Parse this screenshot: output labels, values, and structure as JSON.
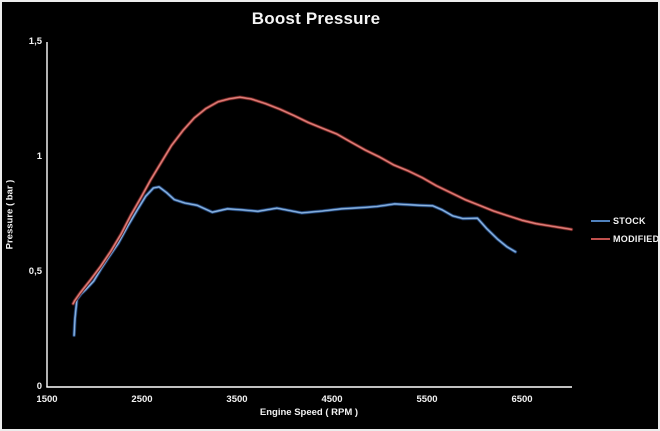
{
  "chart_data": {
    "type": "line",
    "title": "Boost Pressure",
    "xlabel": "Engine Speed ( RPM )",
    "ylabel": "Pressure ( bar )",
    "xlim": [
      1500,
      7026
    ],
    "ylim": [
      0,
      1.5
    ],
    "grid": false,
    "background": "#000000",
    "axis_color": "#ffffff",
    "text_color": "#f2f2f2",
    "legend_position": "right",
    "x_ticks": [
      {
        "value": 1500,
        "label": "1500"
      },
      {
        "value": 2500,
        "label": "2500"
      },
      {
        "value": 3500,
        "label": "3500"
      },
      {
        "value": 4500,
        "label": "4500"
      },
      {
        "value": 5500,
        "label": "5500"
      },
      {
        "value": 6500,
        "label": "6500"
      }
    ],
    "y_ticks": [
      {
        "value": 0,
        "label": "0"
      },
      {
        "value": 0.5,
        "label": "0,5"
      },
      {
        "value": 1,
        "label": "1"
      },
      {
        "value": 1.5,
        "label": "1,5"
      }
    ],
    "series": [
      {
        "name": "STOCK",
        "color": "#4f81bd",
        "halo": "#18325a",
        "core": "#a9c8e8",
        "points": [
          [
            1785,
            0.225
          ],
          [
            1795,
            0.3
          ],
          [
            1815,
            0.38
          ],
          [
            1860,
            0.405
          ],
          [
            1910,
            0.425
          ],
          [
            1990,
            0.46
          ],
          [
            2070,
            0.515
          ],
          [
            2150,
            0.565
          ],
          [
            2250,
            0.625
          ],
          [
            2350,
            0.7
          ],
          [
            2450,
            0.77
          ],
          [
            2540,
            0.83
          ],
          [
            2620,
            0.865
          ],
          [
            2680,
            0.87
          ],
          [
            2760,
            0.845
          ],
          [
            2840,
            0.815
          ],
          [
            2950,
            0.8
          ],
          [
            3080,
            0.79
          ],
          [
            3240,
            0.76
          ],
          [
            3400,
            0.775
          ],
          [
            3560,
            0.77
          ],
          [
            3720,
            0.764
          ],
          [
            3920,
            0.778
          ],
          [
            4180,
            0.757
          ],
          [
            4400,
            0.765
          ],
          [
            4600,
            0.775
          ],
          [
            4820,
            0.78
          ],
          [
            4970,
            0.785
          ],
          [
            5160,
            0.796
          ],
          [
            5420,
            0.79
          ],
          [
            5560,
            0.788
          ],
          [
            5660,
            0.77
          ],
          [
            5770,
            0.744
          ],
          [
            5880,
            0.732
          ],
          [
            6030,
            0.734
          ],
          [
            6130,
            0.688
          ],
          [
            6240,
            0.644
          ],
          [
            6340,
            0.61
          ],
          [
            6430,
            0.588
          ]
        ]
      },
      {
        "name": "MODIFIED",
        "color": "#c0504d",
        "halo": "#531d1b",
        "core": "#e39992",
        "points": [
          [
            1775,
            0.362
          ],
          [
            1790,
            0.375
          ],
          [
            1850,
            0.41
          ],
          [
            1950,
            0.462
          ],
          [
            2060,
            0.522
          ],
          [
            2170,
            0.59
          ],
          [
            2280,
            0.665
          ],
          [
            2380,
            0.745
          ],
          [
            2490,
            0.825
          ],
          [
            2590,
            0.9
          ],
          [
            2700,
            0.975
          ],
          [
            2810,
            1.05
          ],
          [
            2930,
            1.115
          ],
          [
            3050,
            1.17
          ],
          [
            3170,
            1.21
          ],
          [
            3300,
            1.24
          ],
          [
            3420,
            1.253
          ],
          [
            3530,
            1.26
          ],
          [
            3650,
            1.252
          ],
          [
            3800,
            1.232
          ],
          [
            3950,
            1.208
          ],
          [
            4100,
            1.18
          ],
          [
            4250,
            1.15
          ],
          [
            4400,
            1.125
          ],
          [
            4550,
            1.1
          ],
          [
            4700,
            1.065
          ],
          [
            4850,
            1.03
          ],
          [
            5000,
            1.0
          ],
          [
            5150,
            0.965
          ],
          [
            5300,
            0.94
          ],
          [
            5450,
            0.91
          ],
          [
            5600,
            0.875
          ],
          [
            5750,
            0.845
          ],
          [
            5900,
            0.815
          ],
          [
            6050,
            0.79
          ],
          [
            6200,
            0.765
          ],
          [
            6350,
            0.745
          ],
          [
            6500,
            0.725
          ],
          [
            6650,
            0.71
          ],
          [
            6800,
            0.7
          ],
          [
            6950,
            0.69
          ],
          [
            7020,
            0.685
          ]
        ]
      }
    ]
  }
}
